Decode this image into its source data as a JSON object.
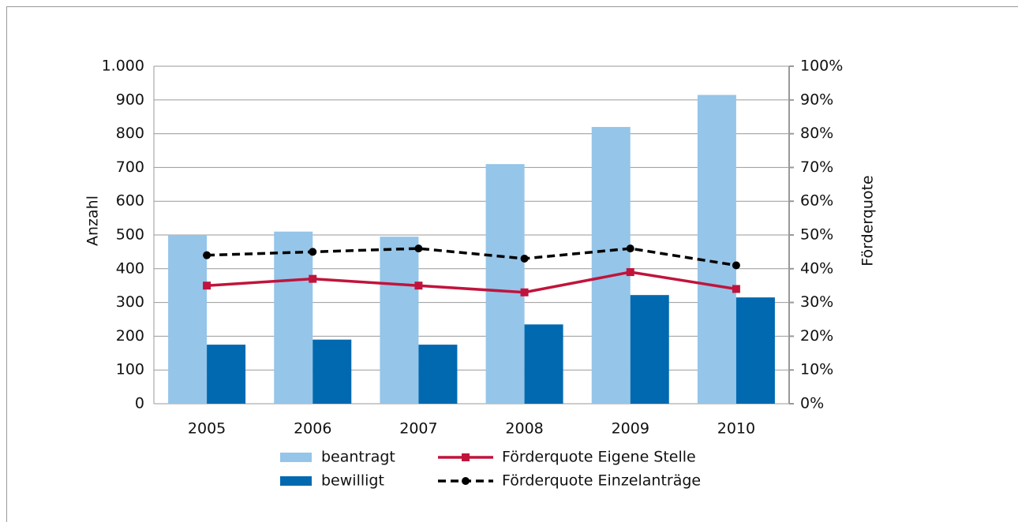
{
  "chart_data": {
    "type": "bar",
    "categories": [
      "2005",
      "2006",
      "2007",
      "2008",
      "2009",
      "2010"
    ],
    "ylabel": "Anzahl",
    "y2label": "Förderquote",
    "ylim": [
      0,
      1000
    ],
    "yticks": [
      0,
      100,
      200,
      300,
      400,
      500,
      600,
      700,
      800,
      900,
      {
        "value": 1000,
        "label": "1.000"
      }
    ],
    "y2lim": [
      0,
      100
    ],
    "y2ticks": [
      {
        "value": 0,
        "label": "0%"
      },
      {
        "value": 10,
        "label": "10%"
      },
      {
        "value": 20,
        "label": "20%"
      },
      {
        "value": 30,
        "label": "30%"
      },
      {
        "value": 40,
        "label": "40%"
      },
      {
        "value": 50,
        "label": "50%"
      },
      {
        "value": 60,
        "label": "60%"
      },
      {
        "value": 70,
        "label": "70%"
      },
      {
        "value": 80,
        "label": "80%"
      },
      {
        "value": 90,
        "label": "90%"
      },
      {
        "value": 100,
        "label": "100%"
      }
    ],
    "grid": true,
    "legend": "bottom",
    "series": [
      {
        "name": "beantragt",
        "type": "bar",
        "color": "#95c5e8",
        "values": [
          500,
          510,
          495,
          710,
          820,
          915
        ]
      },
      {
        "name": "bewilligt",
        "type": "bar",
        "color": "#0069b0",
        "values": [
          175,
          190,
          175,
          235,
          322,
          315
        ]
      },
      {
        "name": "Förderquote Eigene Stelle",
        "type": "line",
        "axis": "y2",
        "color": "#c0143c",
        "marker": "square",
        "dashed": false,
        "values": [
          35,
          37,
          35,
          33,
          39,
          34
        ]
      },
      {
        "name": "Förderquote Einzelanträge",
        "type": "line",
        "axis": "y2",
        "color": "#000000",
        "marker": "circle",
        "dashed": true,
        "values": [
          44,
          45,
          46,
          43,
          46,
          41
        ]
      }
    ]
  }
}
